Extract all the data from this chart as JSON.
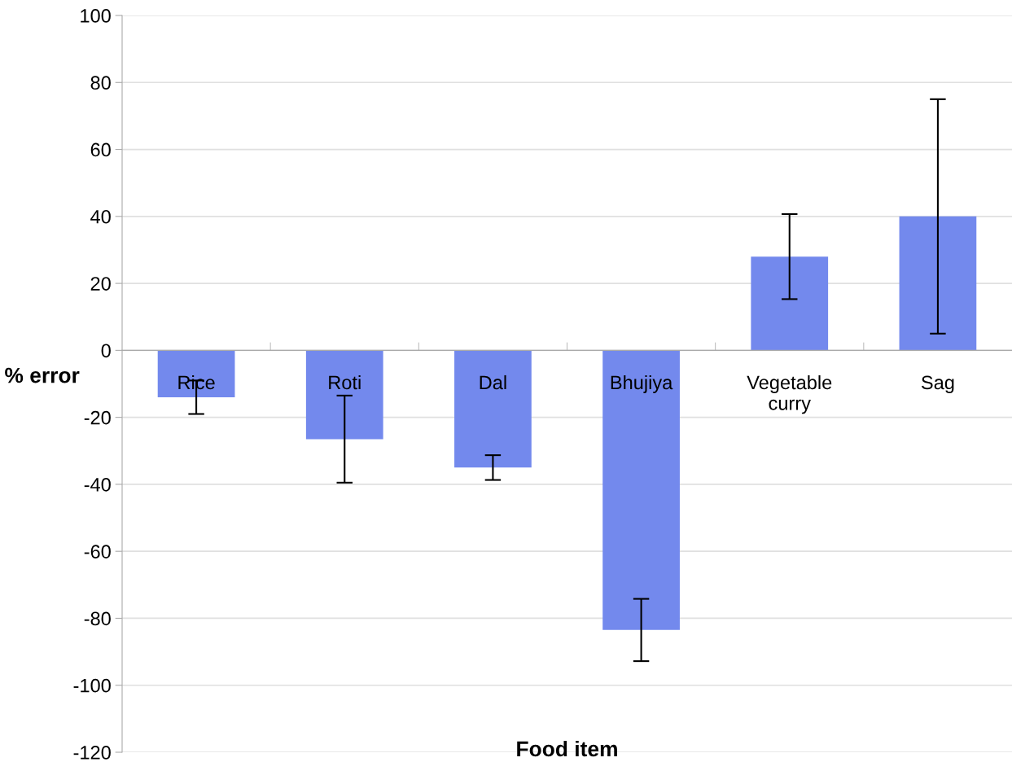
{
  "chart_data": {
    "type": "bar",
    "xlabel": "Food item",
    "ylabel": "% error",
    "categories": [
      "Rice",
      "Roti",
      "Dal",
      "Bhujiya",
      "Vegetable\ncurry",
      "Sag"
    ],
    "values": [
      -14,
      -26.5,
      -35,
      -83.5,
      28,
      40
    ],
    "errors": [
      5,
      13,
      3.7,
      9.3,
      12.7,
      35
    ],
    "color": "#7389ed",
    "ylim": [
      -120,
      100
    ],
    "yticks": [
      -120,
      -100,
      -80,
      -60,
      -40,
      -20,
      0,
      20,
      40,
      60,
      80,
      100
    ],
    "grid": "y"
  }
}
